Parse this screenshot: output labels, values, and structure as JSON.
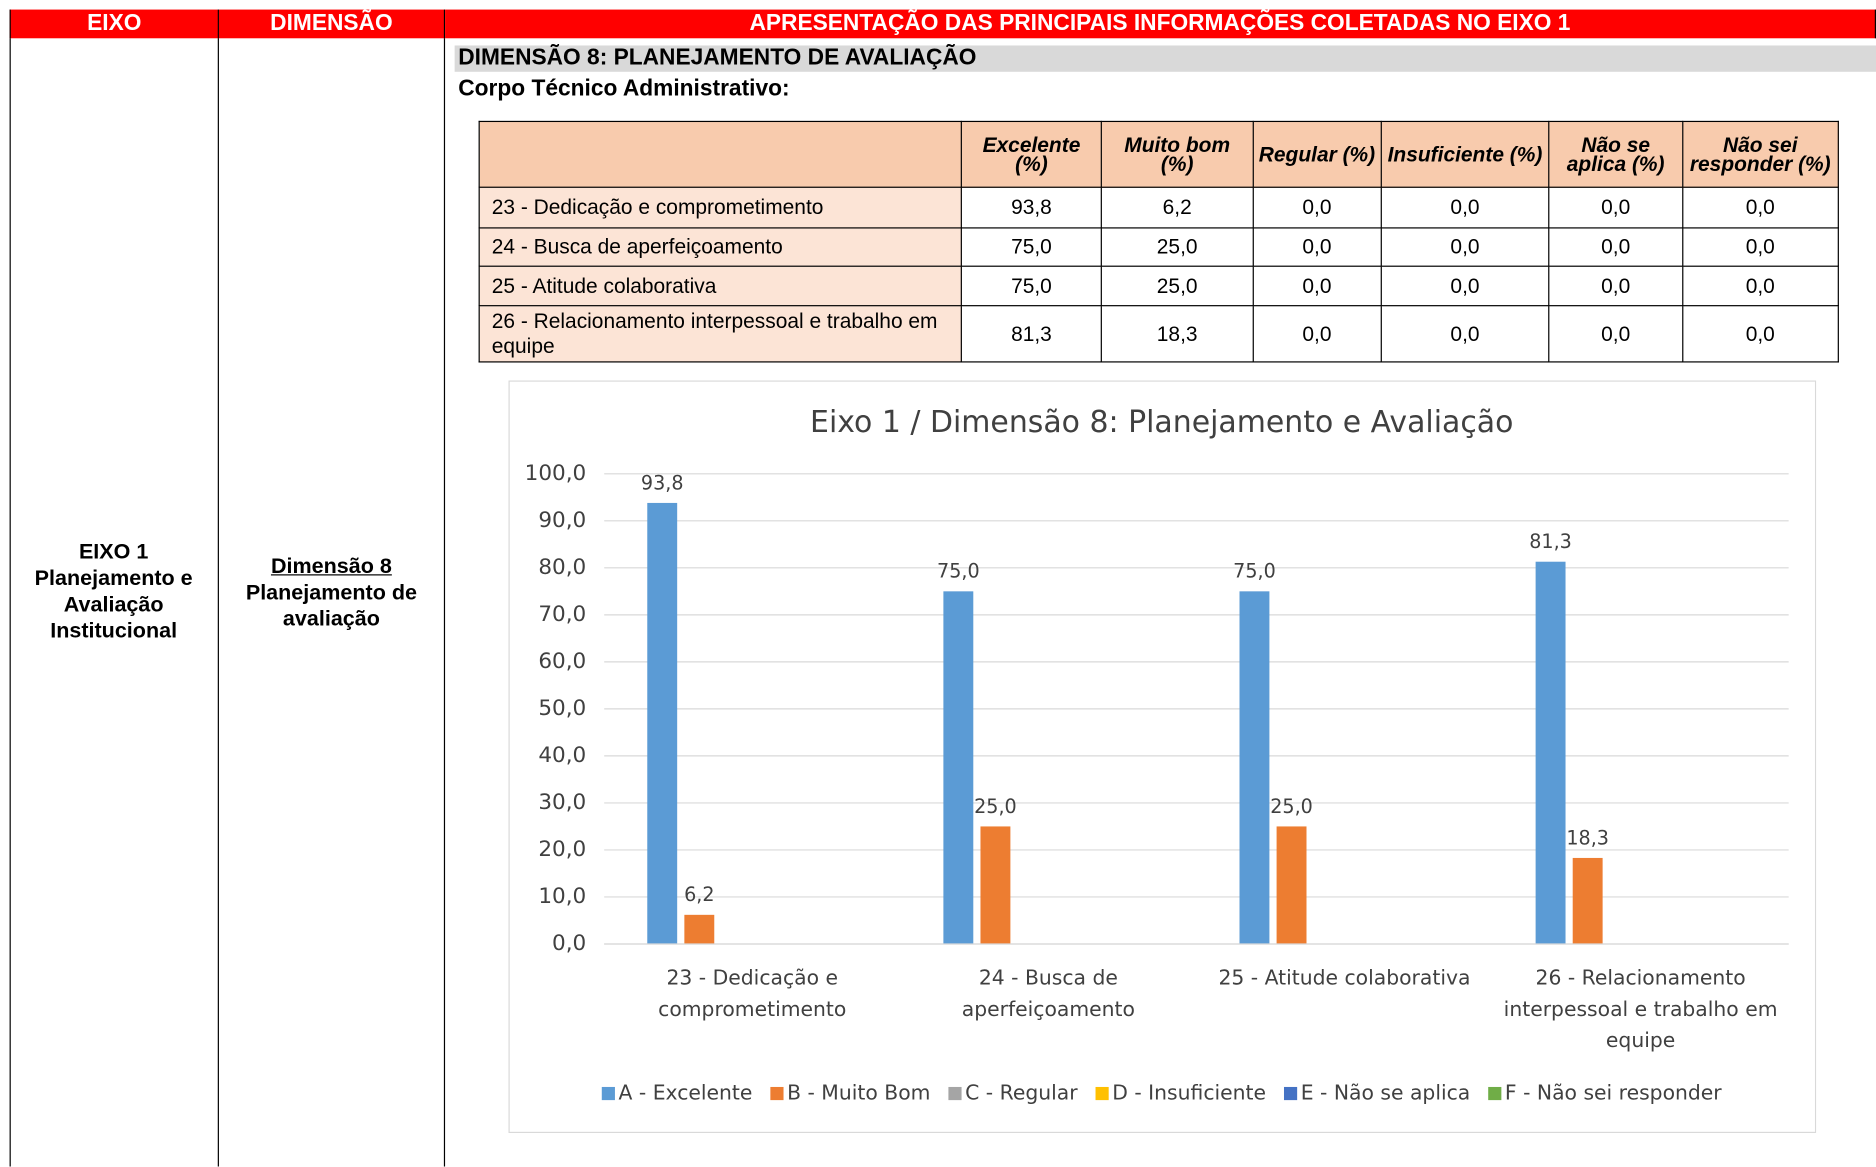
{
  "header": {
    "columns": [
      "EIXO",
      "DIMENSÃO",
      "APRESENTAÇÃO DAS PRINCIPAIS INFORMAÇÕES COLETADAS NO EIXO 1"
    ]
  },
  "eixo": {
    "title": "EIXO 1",
    "name": "Planejamento e Avaliação Institucional"
  },
  "dimensao": {
    "title": "Dimensão 8",
    "name": "Planejamento de avaliação"
  },
  "section_title": "DIMENSÃO 8: PLANEJAMENTO DE AVALIAÇÃO",
  "subtitle": "Corpo Técnico Administrativo:",
  "table": {
    "columns": [
      "Excelente (%)",
      "Muito bom (%)",
      "Regular (%)",
      "Insuficiente (%)",
      "Não se aplica (%)",
      "Não sei responder (%)"
    ],
    "rows": [
      [
        "23 - Dedicação e comprometimento",
        "93,8",
        "6,2",
        "0,0",
        "0,0",
        "0,0",
        "0,0"
      ],
      [
        "24 - Busca de aperfeiçoamento",
        "75,0",
        "25,0",
        "0,0",
        "0,0",
        "0,0",
        "0,0"
      ],
      [
        "25 - Atitude colaborativa",
        "75,0",
        "25,0",
        "0,0",
        "0,0",
        "0,0",
        "0,0"
      ],
      [
        "26 - Relacionamento interpessoal e trabalho em equipe",
        "81,3",
        "18,3",
        "0,0",
        "0,0",
        "0,0",
        "0,0"
      ]
    ]
  },
  "chart_data": {
    "type": "bar",
    "title": "Eixo 1 / Dimensão 8: Planejamento e Avaliação",
    "categories": [
      "23 - Dedicação e comprometimento",
      "24 - Busca de aperfeiçoamento",
      "25 - Atitude colaborativa",
      "26 - Relacionamento interpessoal e trabalho em equipe"
    ],
    "series": [
      {
        "name": "A - Excelente",
        "color": "#5b9bd5",
        "values": [
          93.8,
          75,
          75,
          81.3
        ],
        "value_labels": [
          "93,8",
          "75,0",
          "75,0",
          "81,3"
        ]
      },
      {
        "name": "B - Muito Bom",
        "color": "#ed7d31",
        "values": [
          6.2,
          25,
          25,
          18.3
        ],
        "value_labels": [
          "6,2",
          "25,0",
          "25,0",
          "18,3"
        ]
      },
      {
        "name": "C - Regular",
        "color": "#a5a5a5",
        "values": [
          0,
          0,
          0,
          0
        ]
      },
      {
        "name": "D - Insuficiente",
        "color": "#ffc000",
        "values": [
          0,
          0,
          0,
          0
        ]
      },
      {
        "name": "E - Não se aplica",
        "color": "#4472c4",
        "values": [
          0,
          0,
          0,
          0
        ]
      },
      {
        "name": "F - Não sei responder",
        "color": "#70ad47",
        "values": [
          0,
          0,
          0,
          0
        ]
      }
    ],
    "ylim": [
      0,
      100
    ],
    "yticks": [
      {
        "value": 0,
        "label": "0,0"
      },
      {
        "value": 10,
        "label": "10,0"
      },
      {
        "value": 20,
        "label": "20,0"
      },
      {
        "value": 30,
        "label": "30,0"
      },
      {
        "value": 40,
        "label": "40,0"
      },
      {
        "value": 50,
        "label": "50,0"
      },
      {
        "value": 60,
        "label": "60,0"
      },
      {
        "value": 70,
        "label": "70,0"
      },
      {
        "value": 80,
        "label": "80,0"
      },
      {
        "value": 90,
        "label": "90,0"
      },
      {
        "value": 100,
        "label": "100,0"
      }
    ],
    "grid": true,
    "legend": "bottom"
  }
}
